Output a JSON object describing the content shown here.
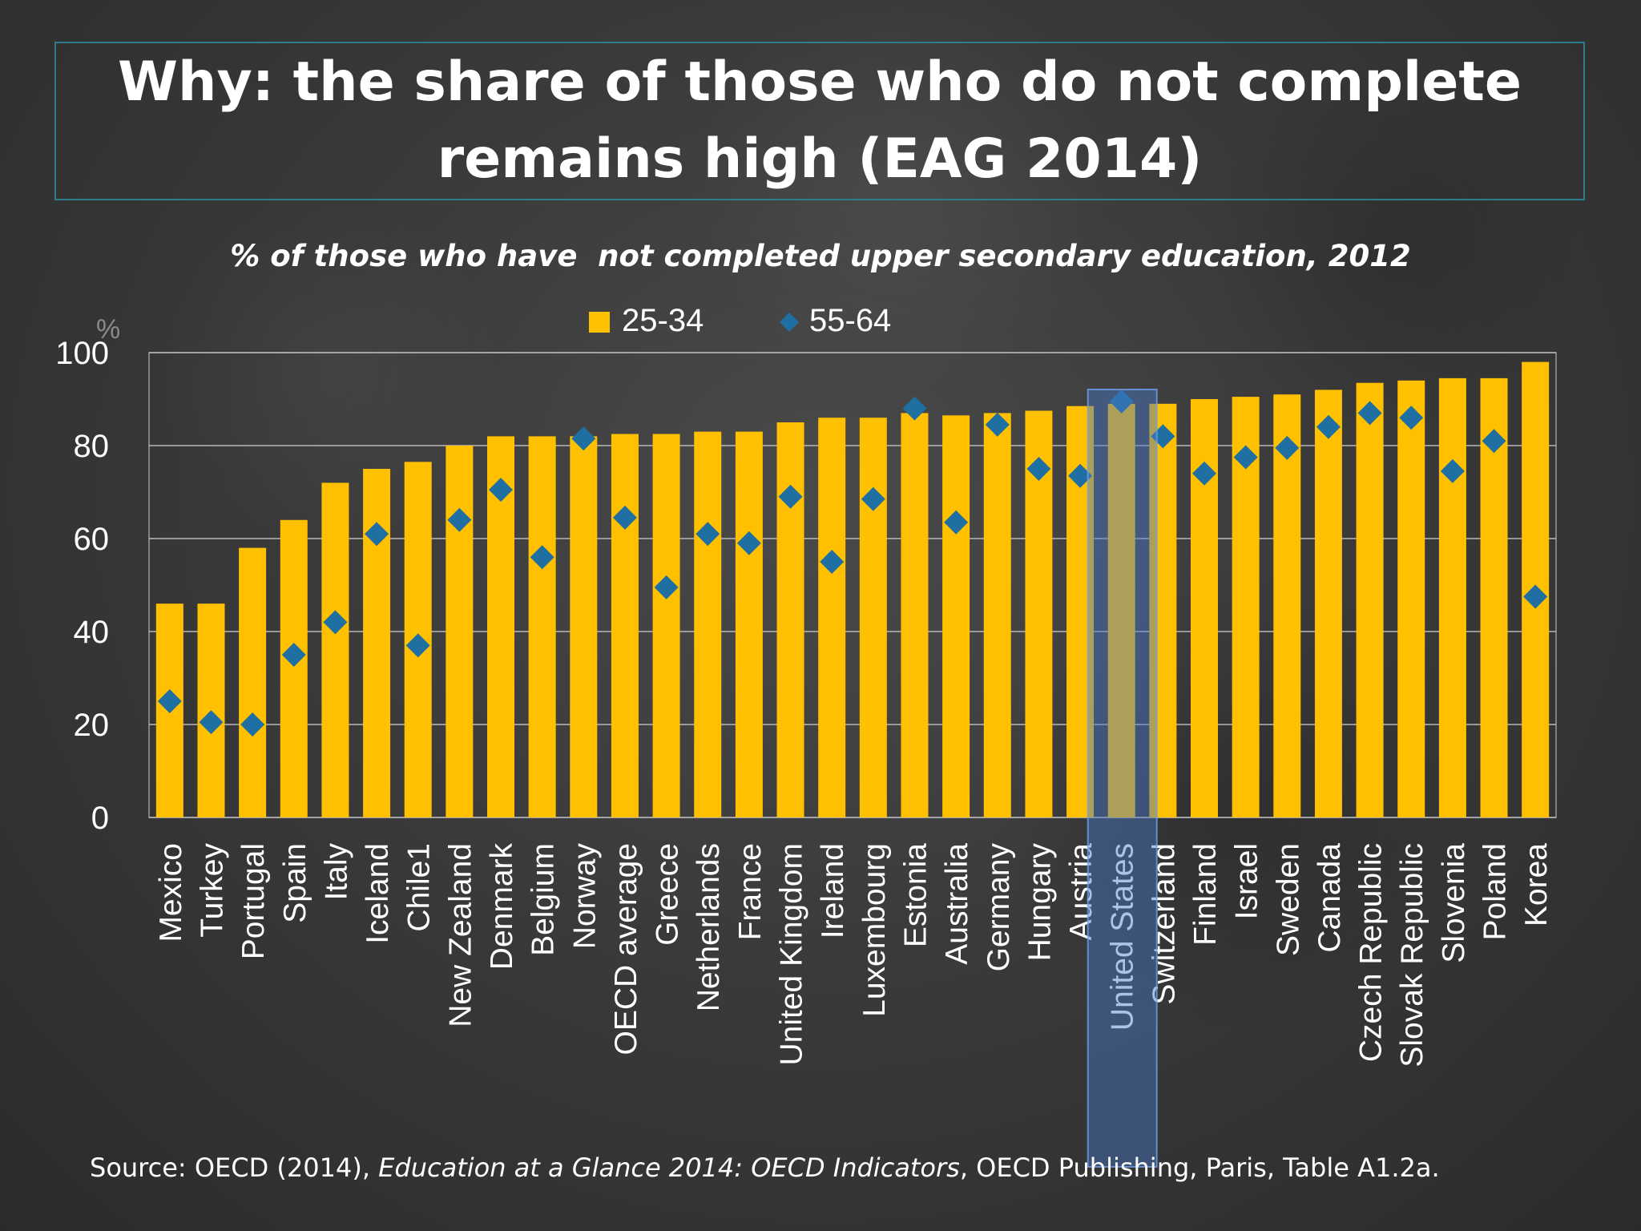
{
  "slide": {
    "title": "Why: the share of those who do not complete remains high (EAG 2014)",
    "subtitle": "% of those who have  not completed upper secondary education, 2012",
    "source_prefix": "Source: OECD (2014), ",
    "source_italic": "Education at a Glance 2014: OECD Indicators",
    "source_suffix": ", OECD Publishing, Paris, Table A1.2a."
  },
  "chart_data": {
    "type": "bar",
    "title": "% of those who have  not completed upper secondary education, 2012",
    "ylabel": "%",
    "xlabel": "",
    "ylim": [
      0,
      100
    ],
    "yticks": [
      0,
      20,
      40,
      60,
      80,
      100
    ],
    "grid": true,
    "legend_position": "top-center",
    "highlight_category": "United States",
    "categories": [
      "Mexico",
      "Turkey",
      "Portugal",
      "Spain",
      "Italy",
      "Iceland",
      "Chile1",
      "New Zealand",
      "Denmark",
      "Belgium",
      "Norway",
      "OECD average",
      "Greece",
      "Netherlands",
      "France",
      "United Kingdom",
      "Ireland",
      "Luxembourg",
      "Estonia",
      "Australia",
      "Germany",
      "Hungary",
      "Austria",
      "United States",
      "Switzerland",
      "Finland",
      "Israel",
      "Sweden",
      "Canada",
      "Czech Republic",
      "Slovak Republic",
      "Slovenia",
      "Poland",
      "Korea"
    ],
    "series": [
      {
        "name": "25-34",
        "kind": "bar",
        "color": "#FFC000",
        "values": [
          46,
          46,
          58,
          64,
          72,
          75,
          76.5,
          80,
          82,
          82,
          82,
          82.5,
          82.5,
          83,
          83,
          85,
          86,
          86,
          87,
          86.5,
          87,
          87.5,
          88.5,
          89,
          89,
          90,
          90.5,
          91,
          92,
          93.5,
          94,
          94.5,
          94.5,
          98
        ]
      },
      {
        "name": "55-64",
        "kind": "marker",
        "color": "#1F6FA3",
        "values": [
          25,
          20.5,
          20,
          35,
          42,
          61,
          37,
          64,
          70.5,
          56,
          81.5,
          64.5,
          49.5,
          61,
          59,
          69,
          55,
          68.5,
          88,
          63.5,
          84.5,
          75,
          73.5,
          89.5,
          82,
          74,
          77.5,
          79.5,
          84,
          87,
          86,
          74.5,
          81,
          47.5
        ]
      }
    ]
  }
}
